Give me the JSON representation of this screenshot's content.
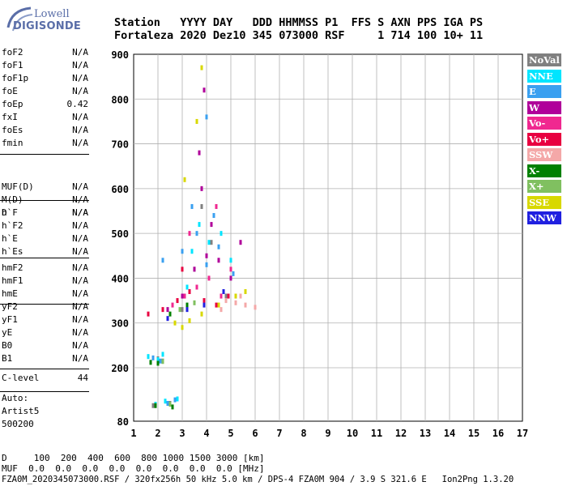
{
  "logo": {
    "line1": "Lowell",
    "line2": "DIGISONDE"
  },
  "header": {
    "line1": "Station   YYYY DAY   DDD HHMMSS P1  FFS S AXN PPS IGA PS",
    "line2": "Fortaleza 2020 Dez10 345 073000 RSF     1 714 100 10+ 11"
  },
  "params": {
    "group1": [
      {
        "name": "foF2",
        "value": "N/A"
      },
      {
        "name": "foF1",
        "value": "N/A"
      },
      {
        "name": "foF1p",
        "value": "N/A"
      },
      {
        "name": "foE",
        "value": "N/A"
      },
      {
        "name": "foEp",
        "value": "0.42"
      },
      {
        "name": "fxI",
        "value": "N/A"
      },
      {
        "name": "foEs",
        "value": "N/A"
      },
      {
        "name": "fmin",
        "value": "N/A"
      }
    ],
    "group2": [
      {
        "name": "MUF(D)",
        "value": "N/A"
      },
      {
        "name": "M(D)",
        "value": "N/A"
      },
      {
        "name": "D",
        "value": "N/A"
      }
    ],
    "group3": [
      {
        "name": "h`F",
        "value": "N/A"
      },
      {
        "name": "h`F2",
        "value": "N/A"
      },
      {
        "name": "h`E",
        "value": "N/A"
      },
      {
        "name": "h`Es",
        "value": "N/A"
      }
    ],
    "group4": [
      {
        "name": "hmF2",
        "value": "N/A"
      },
      {
        "name": "hmF1",
        "value": "N/A"
      },
      {
        "name": "hmE",
        "value": "N/A"
      },
      {
        "name": "yF2",
        "value": "N/A"
      },
      {
        "name": "yF1",
        "value": "N/A"
      },
      {
        "name": "yE",
        "value": "N/A"
      },
      {
        "name": "B0",
        "value": "N/A"
      },
      {
        "name": "B1",
        "value": "N/A"
      }
    ],
    "group5": [
      {
        "name": "C-level",
        "value": "44"
      }
    ]
  },
  "auto": {
    "line1": "Auto:",
    "line2": "Artist5",
    "line3": "500200"
  },
  "legend": [
    {
      "label": "NoVal",
      "color": "#808080"
    },
    {
      "label": "NNE",
      "color": "#00e5ff"
    },
    {
      "label": "E",
      "color": "#3aa0f0"
    },
    {
      "label": "W",
      "color": "#b0009a"
    },
    {
      "label": "Vo-",
      "color": "#f02890"
    },
    {
      "label": "Vo+",
      "color": "#e80040"
    },
    {
      "label": "SSW",
      "color": "#f4a8a8"
    },
    {
      "label": "X-",
      "color": "#008000"
    },
    {
      "label": "X+",
      "color": "#80c060"
    },
    {
      "label": "SSE",
      "color": "#d8d800"
    },
    {
      "label": "NNW",
      "color": "#2020e0"
    }
  ],
  "chart_data": {
    "type": "scatter",
    "title": "",
    "xlabel": "",
    "ylabel": "",
    "x_ticks": [
      1,
      2,
      3,
      4,
      5,
      6,
      7,
      8,
      9,
      10,
      11,
      12,
      13,
      14,
      15,
      16,
      17
    ],
    "y_ticks": [
      80,
      200,
      300,
      400,
      500,
      600,
      700,
      800,
      900
    ],
    "xlim": [
      1,
      17
    ],
    "ylim": [
      80,
      900
    ],
    "grid": true,
    "legend_placement": "right",
    "series": [
      {
        "name": "NoVal",
        "points": [
          [
            2.0,
            220
          ],
          [
            2.2,
            215
          ],
          [
            1.8,
            115
          ],
          [
            2.5,
            120
          ],
          [
            3.5,
            420
          ],
          [
            3.8,
            560
          ],
          [
            4.2,
            480
          ],
          [
            3.0,
            330
          ],
          [
            4.8,
            360
          ]
        ]
      },
      {
        "name": "NNE",
        "points": [
          [
            1.6,
            225
          ],
          [
            2.0,
            218
          ],
          [
            2.2,
            230
          ],
          [
            1.9,
            118
          ],
          [
            2.3,
            125
          ],
          [
            2.8,
            130
          ],
          [
            3.4,
            460
          ],
          [
            3.7,
            520
          ],
          [
            4.1,
            480
          ],
          [
            4.6,
            500
          ],
          [
            5.0,
            440
          ],
          [
            3.2,
            380
          ]
        ]
      },
      {
        "name": "E",
        "points": [
          [
            1.8,
            222
          ],
          [
            2.1,
            215
          ],
          [
            2.4,
            120
          ],
          [
            2.7,
            128
          ],
          [
            2.2,
            440
          ],
          [
            3.0,
            460
          ],
          [
            3.6,
            500
          ],
          [
            4.0,
            430
          ],
          [
            4.5,
            470
          ],
          [
            5.1,
            410
          ],
          [
            3.4,
            560
          ],
          [
            4.0,
            760
          ],
          [
            4.3,
            540
          ]
        ]
      },
      {
        "name": "W",
        "points": [
          [
            2.4,
            330
          ],
          [
            3.0,
            360
          ],
          [
            3.5,
            420
          ],
          [
            4.0,
            450
          ],
          [
            4.5,
            440
          ],
          [
            5.0,
            400
          ],
          [
            5.4,
            480
          ],
          [
            3.8,
            600
          ],
          [
            4.2,
            520
          ],
          [
            3.7,
            680
          ],
          [
            3.9,
            820
          ]
        ]
      },
      {
        "name": "Vo-",
        "points": [
          [
            2.6,
            340
          ],
          [
            3.1,
            360
          ],
          [
            3.6,
            380
          ],
          [
            4.1,
            400
          ],
          [
            4.6,
            360
          ],
          [
            5.0,
            420
          ],
          [
            3.3,
            500
          ],
          [
            4.4,
            560
          ]
        ]
      },
      {
        "name": "Vo+",
        "points": [
          [
            1.6,
            320
          ],
          [
            2.2,
            330
          ],
          [
            2.8,
            350
          ],
          [
            3.3,
            370
          ],
          [
            3.9,
            350
          ],
          [
            4.4,
            340
          ],
          [
            4.9,
            360
          ],
          [
            3.0,
            420
          ]
        ]
      },
      {
        "name": "SSW",
        "points": [
          [
            4.8,
            350
          ],
          [
            5.2,
            345
          ],
          [
            5.6,
            340
          ],
          [
            6.0,
            335
          ],
          [
            5.4,
            360
          ],
          [
            4.6,
            330
          ]
        ]
      },
      {
        "name": "X-",
        "points": [
          [
            1.7,
            212
          ],
          [
            2.0,
            210
          ],
          [
            1.9,
            115
          ],
          [
            2.6,
            112
          ],
          [
            2.5,
            320
          ],
          [
            3.2,
            340
          ]
        ]
      },
      {
        "name": "X+",
        "points": [
          [
            2.2,
            214
          ],
          [
            2.5,
            118
          ],
          [
            2.9,
            330
          ],
          [
            3.5,
            345
          ]
        ]
      },
      {
        "name": "SSE",
        "points": [
          [
            2.7,
            300
          ],
          [
            3.0,
            290
          ],
          [
            3.3,
            305
          ],
          [
            3.8,
            320
          ],
          [
            4.5,
            340
          ],
          [
            5.2,
            360
          ],
          [
            5.6,
            370
          ],
          [
            3.1,
            620
          ],
          [
            3.6,
            750
          ],
          [
            3.8,
            870
          ]
        ]
      },
      {
        "name": "NNW",
        "points": [
          [
            2.4,
            310
          ],
          [
            3.2,
            330
          ],
          [
            3.9,
            340
          ],
          [
            4.7,
            370
          ]
        ]
      }
    ]
  },
  "bottom": {
    "row1": "D     100  200  400  600  800 1000 1500 3000 [km]",
    "row2": "MUF  0.0  0.0  0.0  0.0  0.0  0.0  0.0  0.0 [MHz]"
  },
  "footer": "FZA0M_2020345073000.RSF / 320fx256h 50 kHz 5.0 km / DPS-4 FZA0M 904 / 3.9 S 321.6 E   Ion2Png 1.3.20"
}
